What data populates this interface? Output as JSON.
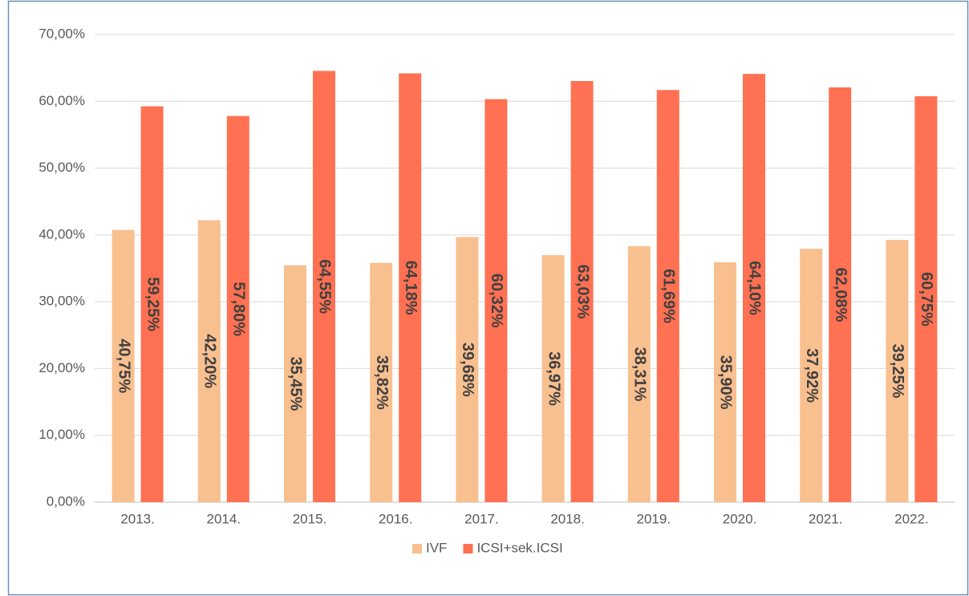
{
  "chart_data": {
    "type": "bar",
    "categories": [
      "2013.",
      "2014.",
      "2015.",
      "2016.",
      "2017.",
      "2018.",
      "2019.",
      "2020.",
      "2021.",
      "2022."
    ],
    "series": [
      {
        "name": "IVF",
        "color": "#f8bf8f",
        "values": [
          40.75,
          42.2,
          35.45,
          35.82,
          39.68,
          36.97,
          38.31,
          35.9,
          37.92,
          39.25
        ],
        "value_labels": [
          "40,75%",
          "42,20%",
          "35,45%",
          "35,82%",
          "39,68%",
          "36,97%",
          "38,31%",
          "35,90%",
          "37,92%",
          "39,25%"
        ]
      },
      {
        "name": "ICSI+sek.ICSI",
        "color": "#ff7152",
        "values": [
          59.25,
          57.8,
          64.55,
          64.18,
          60.32,
          63.03,
          61.69,
          64.1,
          62.08,
          60.75
        ],
        "value_labels": [
          "59,25%",
          "57,80%",
          "64,55%",
          "64,18%",
          "60,32%",
          "63,03%",
          "61,69%",
          "64,10%",
          "62,08%",
          "60,75%"
        ]
      }
    ],
    "ylim": [
      0,
      70
    ],
    "yticks": [
      {
        "value": 0,
        "label": "0,00%"
      },
      {
        "value": 10,
        "label": "10,00%"
      },
      {
        "value": 20,
        "label": "20,00%"
      },
      {
        "value": 30,
        "label": "30,00%"
      },
      {
        "value": 40,
        "label": "40,00%"
      },
      {
        "value": 50,
        "label": "50,00%"
      },
      {
        "value": 60,
        "label": "60,00%"
      },
      {
        "value": 70,
        "label": "70,00%"
      }
    ],
    "grid": true,
    "legend": "bottom"
  }
}
